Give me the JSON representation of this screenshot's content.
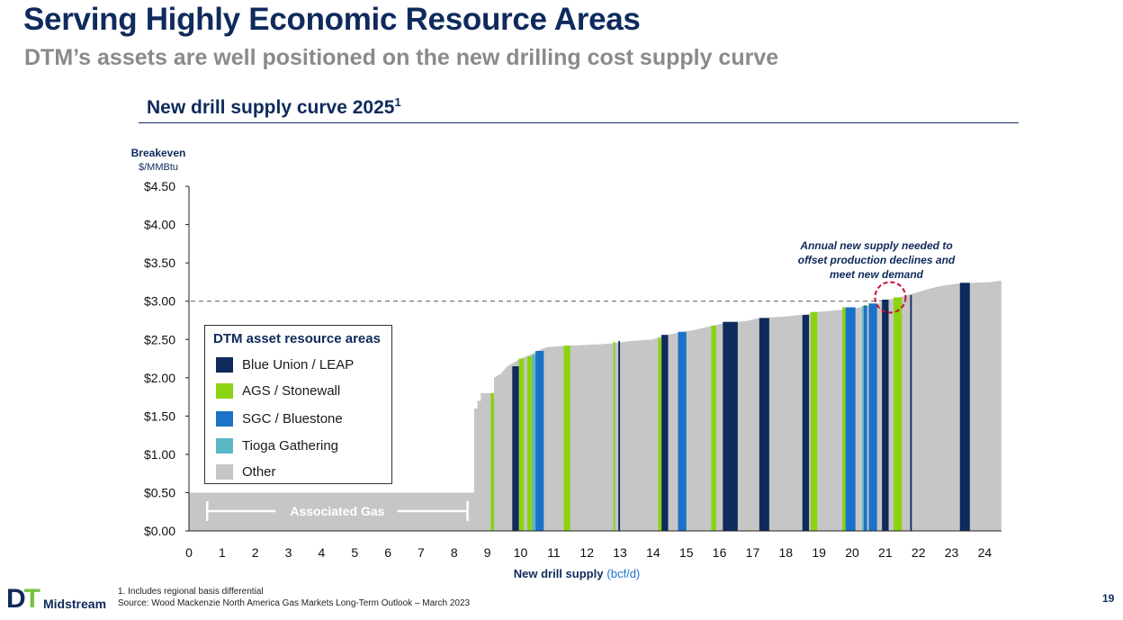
{
  "header": {
    "title": "Serving Highly Economic Resource Areas",
    "subtitle": "DTM’s assets are well positioned on the new drilling cost supply curve",
    "section_title": "New drill supply curve 2025",
    "section_sup": "1"
  },
  "colors": {
    "blue_union": "#0f2a5c",
    "ags": "#8cd312",
    "sgc": "#1a73c8",
    "tioga": "#5ab8c4",
    "other": "#c6c6c6",
    "brand_navy": "#0f2a5c",
    "annotation_circle": "#c8102e"
  },
  "legend": {
    "title": "DTM asset resource areas",
    "items": [
      {
        "label": "Blue Union / LEAP",
        "color": "#0f2a5c"
      },
      {
        "label": "AGS / Stonewall",
        "color": "#8cd312"
      },
      {
        "label": "SGC / Bluestone",
        "color": "#1a73c8"
      },
      {
        "label": "Tioga Gathering",
        "color": "#5ab8c4"
      },
      {
        "label": "Other",
        "color": "#c6c6c6"
      }
    ]
  },
  "annotation": {
    "line1": "Annual new supply needed to",
    "line2": "offset production declines and",
    "line3": "meet new demand"
  },
  "footnote": {
    "line1": "1.    Includes regional basis differential",
    "line2": "Source: Wood Mackenzie North America Gas Markets Long-Term Outlook – March 2023"
  },
  "logo": {
    "mark_d": "D",
    "mark_t": "T",
    "text": "Midstream"
  },
  "page_number": "19",
  "chart_data": {
    "type": "area",
    "ylabel": "Breakeven",
    "ylabel_unit": "$/MMBtu",
    "xlabel": "New drill supply",
    "xlabel_unit": "(bcf/d)",
    "xlim": [
      0,
      24.5
    ],
    "ylim": [
      0,
      4.5
    ],
    "x_ticks": [
      "0",
      "1",
      "2",
      "3",
      "4",
      "5",
      "6",
      "7",
      "8",
      "9",
      "10",
      "11",
      "12",
      "13",
      "14",
      "15",
      "16",
      "17",
      "18",
      "19",
      "20",
      "21",
      "22",
      "23",
      "24"
    ],
    "y_ticks": [
      "$0.00",
      "$0.50",
      "$1.00",
      "$1.50",
      "$2.00",
      "$2.50",
      "$3.00",
      "$3.50",
      "$4.00",
      "$4.50"
    ],
    "y_tick_values": [
      0,
      0.5,
      1.0,
      1.5,
      2.0,
      2.5,
      3.0,
      3.5,
      4.0,
      4.5
    ],
    "reference_line_y": 3.0,
    "associated_gas_label": "Associated Gas",
    "associated_gas_range": [
      0.55,
      8.4
    ],
    "other_curve": [
      [
        0,
        0.5
      ],
      [
        8.6,
        0.5
      ],
      [
        8.6,
        1.6
      ],
      [
        8.7,
        1.6
      ],
      [
        8.7,
        1.7
      ],
      [
        8.8,
        1.7
      ],
      [
        8.8,
        1.8
      ],
      [
        9.2,
        1.8
      ],
      [
        9.2,
        2.0
      ],
      [
        9.4,
        2.05
      ],
      [
        9.6,
        2.15
      ],
      [
        9.8,
        2.2
      ],
      [
        10.0,
        2.25
      ],
      [
        10.3,
        2.3
      ],
      [
        10.5,
        2.35
      ],
      [
        10.8,
        2.4
      ],
      [
        11.5,
        2.42
      ],
      [
        12.5,
        2.44
      ],
      [
        13.0,
        2.46
      ],
      [
        13.3,
        2.48
      ],
      [
        14.0,
        2.5
      ],
      [
        14.3,
        2.55
      ],
      [
        14.9,
        2.6
      ],
      [
        15.2,
        2.62
      ],
      [
        15.5,
        2.65
      ],
      [
        15.8,
        2.68
      ],
      [
        16.0,
        2.7
      ],
      [
        16.3,
        2.72
      ],
      [
        16.8,
        2.74
      ],
      [
        17.2,
        2.78
      ],
      [
        18.0,
        2.8
      ],
      [
        18.6,
        2.83
      ],
      [
        19.0,
        2.86
      ],
      [
        19.5,
        2.88
      ],
      [
        20.0,
        2.9
      ],
      [
        20.5,
        2.94
      ],
      [
        20.8,
        2.97
      ],
      [
        21.1,
        3.02
      ],
      [
        21.5,
        3.06
      ],
      [
        22.0,
        3.12
      ],
      [
        22.3,
        3.16
      ],
      [
        22.7,
        3.2
      ],
      [
        23.2,
        3.23
      ],
      [
        23.7,
        3.24
      ],
      [
        24.2,
        3.25
      ],
      [
        24.5,
        3.27
      ]
    ],
    "series": [
      {
        "name": "Blue Union / LEAP",
        "color": "#0f2a5c",
        "bars": [
          [
            9.75,
            9.95,
            2.15
          ],
          [
            12.95,
            13.0,
            2.48
          ],
          [
            14.25,
            14.45,
            2.56
          ],
          [
            16.1,
            16.55,
            2.73
          ],
          [
            17.2,
            17.5,
            2.78
          ],
          [
            18.5,
            18.7,
            2.82
          ],
          [
            20.9,
            21.1,
            3.02
          ],
          [
            21.75,
            21.8,
            3.08
          ],
          [
            23.25,
            23.55,
            3.24
          ]
        ]
      },
      {
        "name": "AGS / Stonewall",
        "color": "#8cd312",
        "bars": [
          [
            9.1,
            9.2,
            1.8
          ],
          [
            9.95,
            10.1,
            2.25
          ],
          [
            10.2,
            10.35,
            2.28
          ],
          [
            11.3,
            11.5,
            2.42
          ],
          [
            12.8,
            12.85,
            2.47
          ],
          [
            14.15,
            14.25,
            2.52
          ],
          [
            15.75,
            15.9,
            2.68
          ],
          [
            18.75,
            18.95,
            2.86
          ],
          [
            19.7,
            19.8,
            2.92
          ],
          [
            20.35,
            20.45,
            2.95
          ],
          [
            21.25,
            21.5,
            3.05
          ]
        ]
      },
      {
        "name": "SGC / Bluestone",
        "color": "#1a73c8",
        "bars": [
          [
            10.45,
            10.7,
            2.35
          ],
          [
            14.75,
            15.0,
            2.6
          ],
          [
            19.8,
            20.1,
            2.92
          ],
          [
            20.35,
            20.45,
            2.94
          ],
          [
            20.5,
            20.75,
            2.97
          ]
        ]
      },
      {
        "name": "Tioga Gathering",
        "color": "#5ab8c4",
        "bars": [
          [
            10.35,
            10.45,
            2.3
          ],
          [
            20.3,
            20.35,
            2.94
          ]
        ]
      }
    ]
  }
}
